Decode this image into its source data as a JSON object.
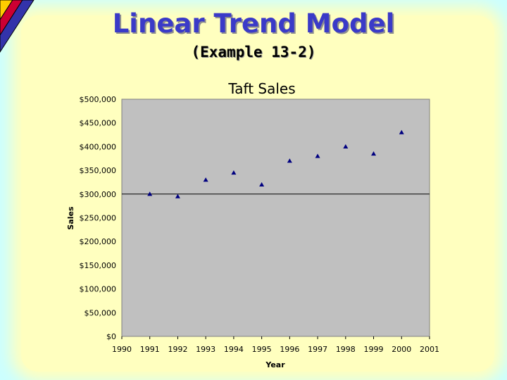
{
  "slide": {
    "title": "Linear Trend Model",
    "subtitle": "(Example 13-2)"
  },
  "chart_data": {
    "type": "scatter",
    "title": "Taft Sales",
    "xlabel": "Year",
    "ylabel": "Sales",
    "xlim": [
      1990,
      2001
    ],
    "ylim": [
      0,
      500000
    ],
    "x_ticks": [
      "1990",
      "1991",
      "1992",
      "1993",
      "1994",
      "1995",
      "1996",
      "1997",
      "1998",
      "1999",
      "2000",
      "2001"
    ],
    "y_ticks": [
      "$0",
      "$50,000",
      "$100,000",
      "$150,000",
      "$200,000",
      "$250,000",
      "$300,000",
      "$350,000",
      "$400,000",
      "$450,000",
      "$500,000"
    ],
    "x": [
      1991,
      1992,
      1993,
      1994,
      1995,
      1996,
      1997,
      1998,
      1999,
      2000
    ],
    "y": [
      300000,
      295000,
      330000,
      345000,
      320000,
      370000,
      380000,
      400000,
      385000,
      430000
    ],
    "reference_line_y": 300000,
    "grid": false,
    "plot_background": "#c0c0c0",
    "marker_color": "#000080",
    "marker": "triangle"
  }
}
